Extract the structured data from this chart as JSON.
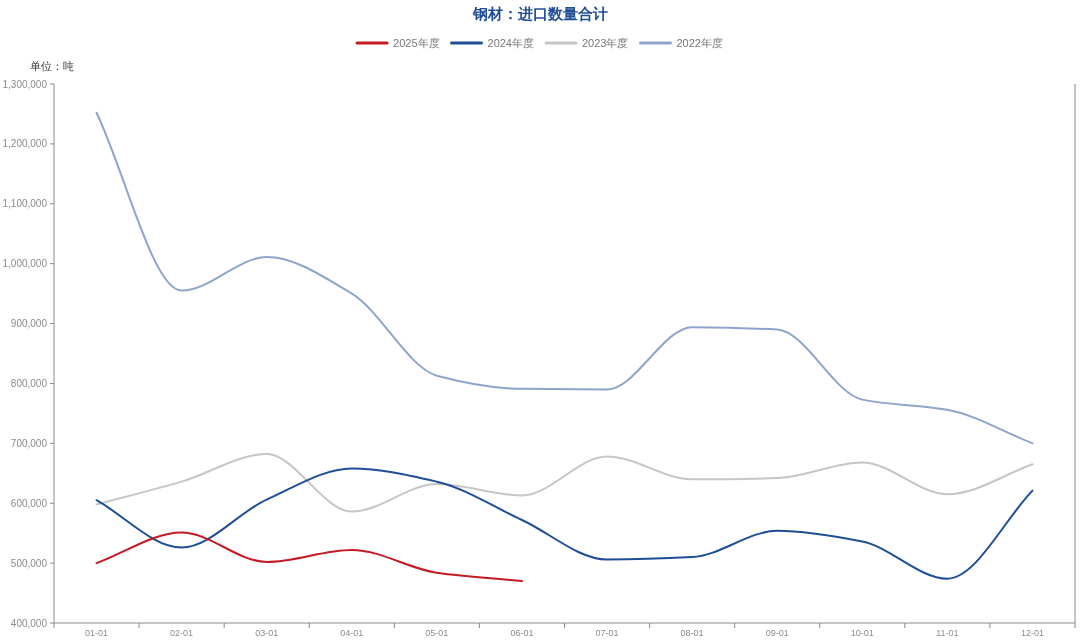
{
  "chart_data": {
    "type": "line",
    "title": "钢材：进口数量合计",
    "ylabel": "单位：吨",
    "legend": "top",
    "line_style": "solid",
    "categories": [
      "01-01",
      "02-01",
      "03-01",
      "04-01",
      "05-01",
      "06-01",
      "07-01",
      "08-01",
      "09-01",
      "10-01",
      "11-01",
      "12-01"
    ],
    "series": [
      {
        "name": "2025年度",
        "color": "#c41a24",
        "values": [
          500000,
          551000,
          502000,
          522000,
          484000,
          470000,
          null,
          null,
          null,
          null,
          null,
          null
        ]
      },
      {
        "name": "2024年度",
        "color": "#1f4e96",
        "values": [
          605000,
          526000,
          606000,
          658000,
          636000,
          572000,
          506000,
          510000,
          554000,
          536000,
          474000,
          621000
        ]
      },
      {
        "name": "2023年度",
        "color": "#c6c6c6",
        "values": [
          598000,
          636000,
          682000,
          586000,
          632000,
          613000,
          678000,
          640000,
          642000,
          668000,
          615000,
          665000
        ]
      },
      {
        "name": "2022年度",
        "color": "#8fa4cc",
        "values": [
          1252000,
          955000,
          1011000,
          950000,
          813000,
          791000,
          790000,
          894000,
          890000,
          773000,
          756000,
          700000
        ]
      }
    ],
    "ylim": [
      400000,
      1300000
    ],
    "yticks": [
      {
        "value": 400000,
        "label": "400,000"
      },
      {
        "value": 500000,
        "label": "500,000"
      },
      {
        "value": 600000,
        "label": "600,000"
      },
      {
        "value": 700000,
        "label": "700,000"
      },
      {
        "value": 800000,
        "label": "800,000"
      },
      {
        "value": 900000,
        "label": "900,000"
      },
      {
        "value": 1000000,
        "label": "1,000,000"
      },
      {
        "value": 1100000,
        "label": "1,100,000"
      },
      {
        "value": 1200000,
        "label": "1,200,000"
      },
      {
        "value": 1300000,
        "label": "1,300,000"
      }
    ]
  }
}
